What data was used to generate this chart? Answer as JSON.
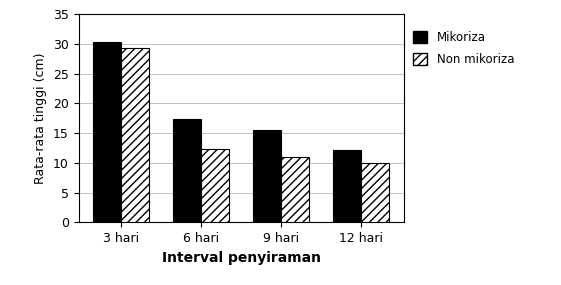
{
  "categories": [
    "3 hari",
    "6 hari",
    "9 hari",
    "12 hari"
  ],
  "mikoriza": [
    30.4,
    17.3,
    15.5,
    12.2
  ],
  "non_mikoriza": [
    29.4,
    12.4,
    11.0,
    10.0
  ],
  "ylabel": "Rata-rata tinggi (cm)",
  "xlabel": "Interval penyiraman",
  "ylim": [
    0,
    35
  ],
  "yticks": [
    0,
    5,
    10,
    15,
    20,
    25,
    30,
    35
  ],
  "legend_mikoriza": "Mikoriza",
  "legend_non_mikoriza": "Non mikoriza",
  "bar_width": 0.35,
  "background_color": "#ffffff"
}
